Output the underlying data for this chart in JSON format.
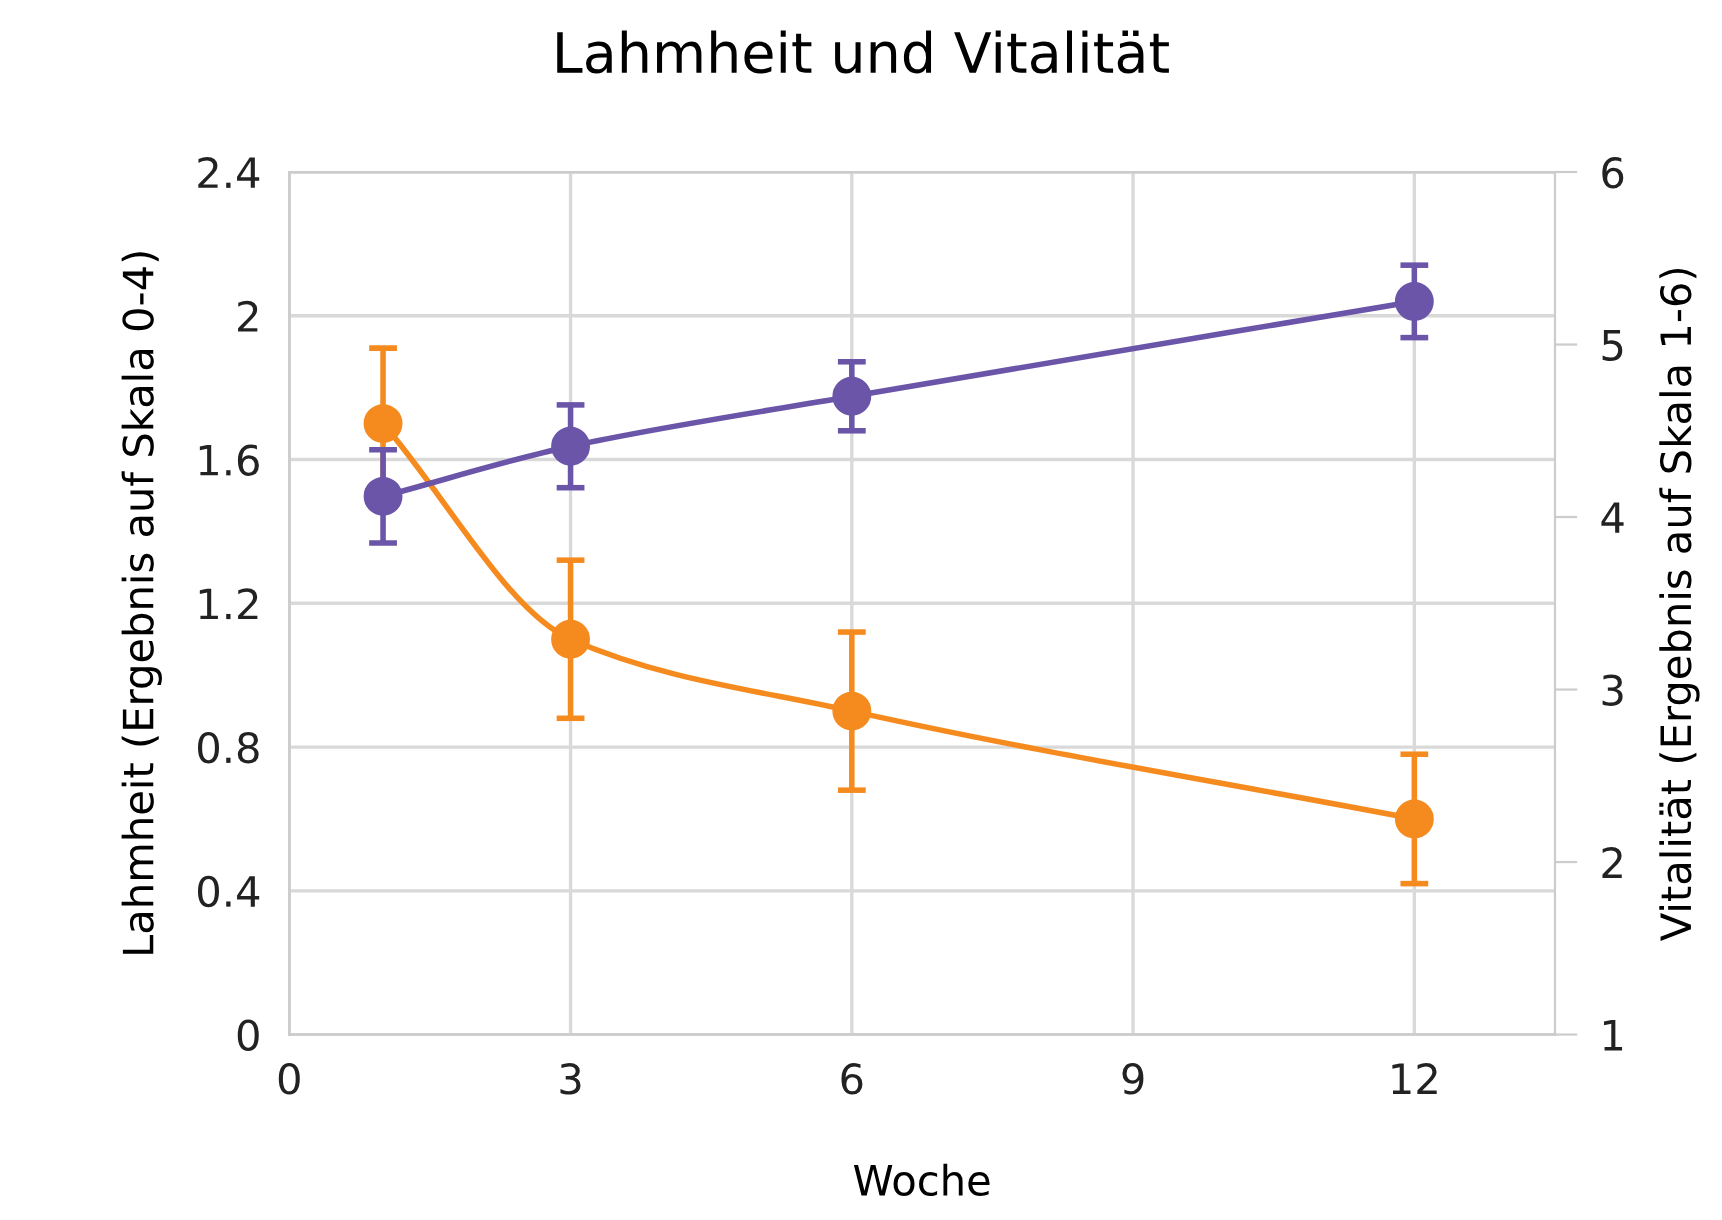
{
  "chart_data": {
    "type": "line",
    "title": "Lahmheit und Vitalität",
    "xlabel": "Woche",
    "ylabel": "Lahmheit (Ergebnis auf Skala 0-4)",
    "y2label": "Vitalität (Ergebnis auf Skala 1-6)",
    "x": [
      1,
      3,
      6,
      12
    ],
    "series": [
      {
        "color": "#f58b1f",
        "values": [
          1.7,
          1.1,
          0.9,
          0.6
        ],
        "errors": [
          0.21,
          0.22,
          0.22,
          0.18
        ]
      },
      {
        "color": "#6a55a8",
        "axis": "y2",
        "values": [
          4.12,
          4.41,
          4.7,
          5.25
        ],
        "errors": [
          0.27,
          0.24,
          0.2,
          0.21
        ]
      }
    ],
    "xlim": [
      0,
      13.5
    ],
    "xticks": [
      0,
      3,
      6,
      9,
      12
    ],
    "ylim": [
      0,
      2.4
    ],
    "yticks": [
      0,
      0.4,
      0.8,
      1.2,
      1.6,
      2,
      2.4
    ],
    "y2lim": [
      1,
      6
    ],
    "y2ticks": [
      1,
      2,
      3,
      4,
      5,
      6
    ],
    "grid": true,
    "legend": false,
    "marker": "circle",
    "line_style": "solid"
  }
}
